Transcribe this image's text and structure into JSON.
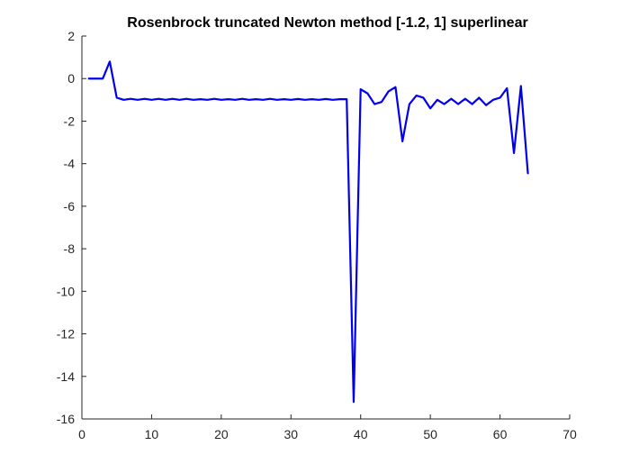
{
  "chart_data": {
    "type": "line",
    "title": "Rosenbrock truncated Newton method [-1.2, 1] superlinear",
    "xlabel": "",
    "ylabel": "",
    "xlim": [
      0,
      70
    ],
    "ylim": [
      -16,
      2
    ],
    "x_ticks": [
      0,
      10,
      20,
      30,
      40,
      50,
      60,
      70
    ],
    "y_ticks": [
      2,
      0,
      -2,
      -4,
      -6,
      -8,
      -10,
      -12,
      -14,
      -16
    ],
    "grid": false,
    "legend": "none",
    "line_color": "#0000ee",
    "series": [
      {
        "x": [
          1,
          2,
          3,
          4,
          5,
          6,
          7,
          8,
          9,
          10,
          11,
          12,
          13,
          14,
          15,
          16,
          17,
          18,
          19,
          20,
          21,
          22,
          23,
          24,
          25,
          26,
          27,
          28,
          29,
          30,
          31,
          32,
          33,
          34,
          35,
          36,
          37,
          38,
          39,
          40,
          41,
          42,
          43,
          44,
          45,
          46,
          47,
          48,
          49,
          50,
          51,
          52,
          53,
          54,
          55,
          56,
          57,
          58,
          59,
          60,
          61,
          62,
          63,
          64
        ],
        "values": [
          0,
          0,
          0,
          0.8,
          -0.9,
          -1.0,
          -0.95,
          -1.0,
          -0.95,
          -1.0,
          -0.95,
          -1.0,
          -0.95,
          -1.0,
          -0.95,
          -1.0,
          -0.97,
          -1.0,
          -0.95,
          -1.0,
          -0.97,
          -1.0,
          -0.95,
          -1.0,
          -0.97,
          -1.0,
          -0.95,
          -1.0,
          -0.97,
          -1.0,
          -0.96,
          -1.0,
          -0.97,
          -1.0,
          -0.96,
          -1.0,
          -0.97,
          -0.97,
          -15.2,
          -0.5,
          -0.7,
          -1.2,
          -1.1,
          -0.6,
          -0.4,
          -2.95,
          -1.2,
          -0.8,
          -0.9,
          -1.4,
          -1.0,
          -1.2,
          -0.95,
          -1.2,
          -0.95,
          -1.2,
          -0.9,
          -1.25,
          -1.0,
          -0.9,
          -0.45,
          -3.5,
          -0.35,
          -4.45
        ]
      }
    ]
  }
}
